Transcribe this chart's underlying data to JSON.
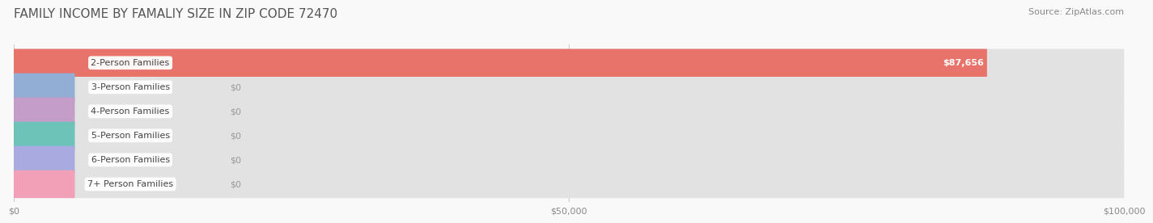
{
  "title": "FAMILY INCOME BY FAMALIY SIZE IN ZIP CODE 72470",
  "source": "Source: ZipAtlas.com",
  "categories": [
    "2-Person Families",
    "3-Person Families",
    "4-Person Families",
    "5-Person Families",
    "6-Person Families",
    "7+ Person Families"
  ],
  "values": [
    87656,
    0,
    0,
    0,
    0,
    0
  ],
  "bar_colors": [
    "#e8736b",
    "#92aed4",
    "#c49ec9",
    "#6ec3b8",
    "#a9abe0",
    "#f2a0b8"
  ],
  "xlim": [
    0,
    100000
  ],
  "xticks": [
    0,
    50000,
    100000
  ],
  "xtick_labels": [
    "$0",
    "$50,000",
    "$100,000"
  ],
  "value_labels": [
    "$87,656",
    "$0",
    "$0",
    "$0",
    "$0",
    "$0"
  ],
  "bar_bg_color": "#e8e8e8",
  "title_fontsize": 11,
  "source_fontsize": 8,
  "label_fontsize": 8,
  "value_fontsize": 8,
  "bar_height": 0.62,
  "figsize": [
    14.06,
    3.05
  ]
}
